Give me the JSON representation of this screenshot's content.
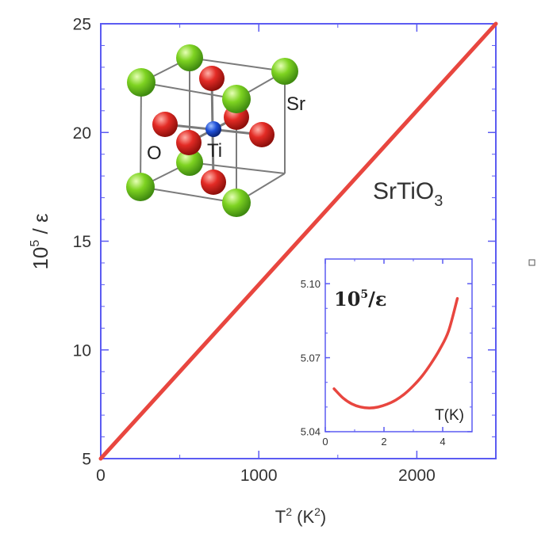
{
  "chart_data": [
    {
      "type": "line",
      "title": "",
      "xlabel": "T",
      "xlabel_sup": "2",
      "xlabel_unit_pre": " (K",
      "xlabel_unit_sup": "2",
      "xlabel_unit_post": ")",
      "ylabel": "10",
      "ylabel_sup": "5",
      "ylabel_post": " / ε",
      "xlim": [
        0,
        2500
      ],
      "ylim": [
        5,
        25
      ],
      "xticks": [
        0,
        1000,
        2000
      ],
      "yticks": [
        5,
        10,
        15,
        20,
        25
      ],
      "grid": false,
      "annotation": "SrTiO",
      "annotation_sub": "3",
      "series": [
        {
          "color": "#e8463f",
          "x": [
            0,
            2500
          ],
          "y": [
            5,
            25
          ]
        }
      ]
    },
    {
      "type": "line",
      "title": "",
      "xlabel": "T(K)",
      "ylabel": "",
      "label": "10",
      "label_sup": "5",
      "label_post": "/ε",
      "xlim": [
        0,
        5
      ],
      "ylim": [
        5.04,
        5.11
      ],
      "xticks": [
        0,
        2,
        4
      ],
      "yticks": [
        5.04,
        5.07,
        5.1
      ],
      "ytick_labels": [
        "5.04",
        "5.07",
        "5.10"
      ],
      "grid": false,
      "series": [
        {
          "color": "#e8463f",
          "x": [
            0.3,
            0.6,
            0.9,
            1.2,
            1.5,
            1.8,
            2.1,
            2.4,
            2.7,
            3.0,
            3.3,
            3.6,
            3.9,
            4.2,
            4.5
          ],
          "y": [
            5.0574,
            5.0537,
            5.0513,
            5.05,
            5.0496,
            5.05,
            5.0511,
            5.0528,
            5.0553,
            5.0586,
            5.0626,
            5.0676,
            5.0734,
            5.0808,
            5.094
          ]
        }
      ]
    }
  ],
  "crystal": {
    "sr_label": "Sr",
    "o_label": "O",
    "ti_label": "Ti",
    "colors": {
      "sr": "#7ed321",
      "o": "#e32b25",
      "ti": "#1f4fd6",
      "frame": "#7b7b7b"
    }
  },
  "colors": {
    "axes": "#5b5bf2",
    "text": "#333333"
  }
}
